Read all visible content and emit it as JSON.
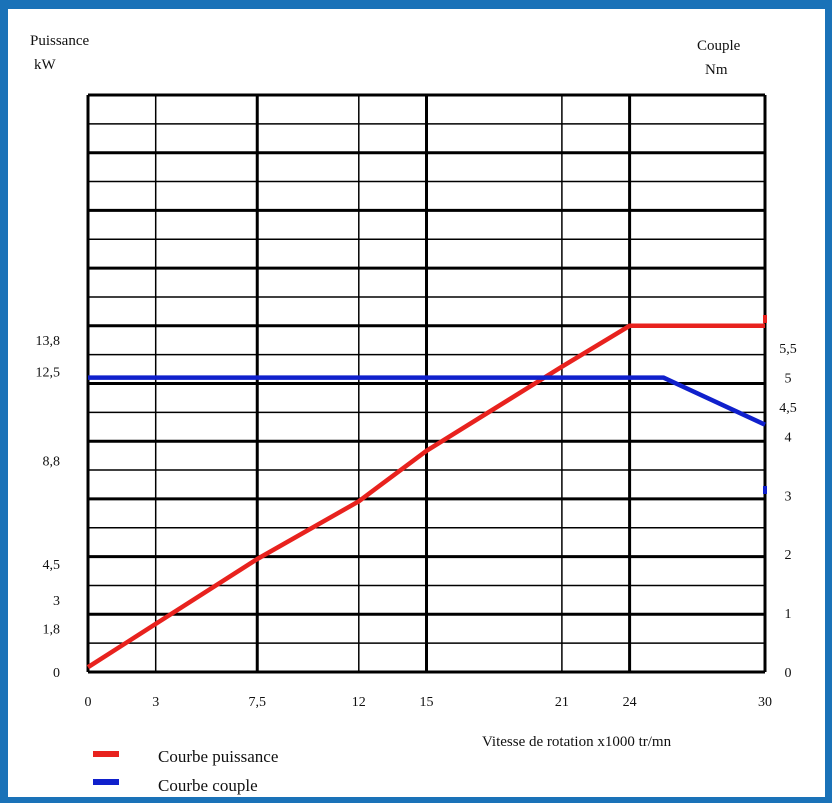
{
  "chart_data": {
    "type": "line",
    "x_axis": {
      "label": "Vitesse de rotation x1000 tr/mn",
      "range": [
        0,
        30
      ],
      "ticks": [
        0,
        3,
        7.5,
        12,
        15,
        21,
        24,
        30
      ],
      "tick_labels": [
        "0",
        "3",
        "7,5",
        "12",
        "15",
        "21",
        "24",
        "30"
      ]
    },
    "y_left": {
      "label_line1": "Puissance",
      "label_line2": "kW",
      "range": [
        0,
        24
      ],
      "ticks": [
        0,
        1.8,
        3,
        4.5,
        8.8,
        12.5,
        13.8
      ],
      "tick_labels": [
        "0",
        "1,8",
        "3",
        "4,5",
        "8,8",
        "12,5",
        "13,8"
      ]
    },
    "y_right": {
      "label_line1": "Couple",
      "label_line2": "Nm",
      "range": [
        0,
        9.8
      ],
      "ticks": [
        0,
        1,
        2,
        3,
        4,
        4.5,
        5,
        5.5
      ],
      "tick_labels": [
        "0",
        "1",
        "2",
        "3",
        "4",
        "4,5",
        "5",
        "5,5"
      ]
    },
    "grid": true,
    "legend_placement": "bottom-left",
    "series": [
      {
        "name": "Courbe puissance",
        "color": "#e8221e",
        "axis": "left",
        "x": [
          0,
          3,
          7.5,
          12,
          15,
          21,
          24,
          30
        ],
        "y": [
          0.2,
          2.0,
          4.7,
          7.1,
          9.2,
          12.7,
          14.4,
          14.4
        ]
      },
      {
        "name": "Courbe couple",
        "color": "#1020cc",
        "axis": "right",
        "x": [
          0,
          25.5,
          30
        ],
        "y": [
          5.0,
          5.0,
          4.2
        ]
      }
    ]
  }
}
